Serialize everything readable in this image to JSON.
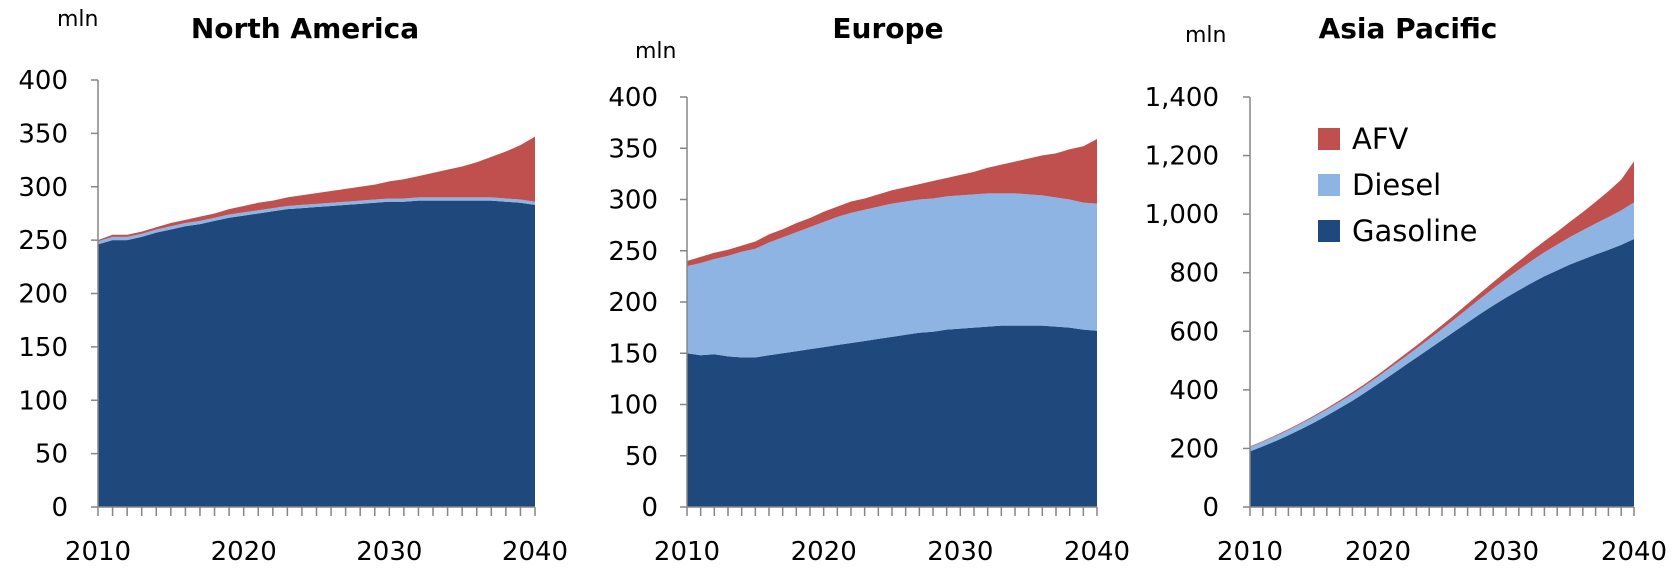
{
  "colors": {
    "gasoline": "#1F497D",
    "diesel": "#8EB4E3",
    "afv": "#C0504D",
    "axis": "#868686"
  },
  "chart_data": [
    {
      "type": "area",
      "stacked": true,
      "title": "North America",
      "ylabel": "mln",
      "xlim": [
        2010,
        2040
      ],
      "ylim": [
        0,
        400
      ],
      "yticks": [
        "0",
        "50",
        "100",
        "150",
        "200",
        "250",
        "300",
        "350",
        "400"
      ],
      "xticks": [
        "2010",
        "2020",
        "2030",
        "2040"
      ],
      "x": [
        2010,
        2011,
        2012,
        2013,
        2014,
        2015,
        2016,
        2017,
        2018,
        2019,
        2020,
        2021,
        2022,
        2023,
        2024,
        2025,
        2026,
        2027,
        2028,
        2029,
        2030,
        2031,
        2032,
        2033,
        2034,
        2035,
        2036,
        2037,
        2038,
        2039,
        2040
      ],
      "series": [
        {
          "name": "Gasoline",
          "values": [
            246,
            250,
            250,
            253,
            257,
            260,
            263,
            265,
            268,
            271,
            273,
            275,
            277,
            279,
            280,
            281,
            282,
            283,
            284,
            285,
            286,
            286,
            287,
            287,
            287,
            287,
            287,
            287,
            286,
            285,
            283
          ]
        },
        {
          "name": "Diesel",
          "values": [
            3,
            3,
            3,
            3,
            3,
            3,
            3,
            3,
            3,
            3,
            3,
            3,
            3,
            3,
            3,
            3,
            3,
            3,
            3,
            3,
            3,
            3,
            3,
            3,
            3,
            3,
            3,
            3,
            3,
            3,
            3
          ]
        },
        {
          "name": "AFV",
          "values": [
            1,
            2,
            2,
            2,
            2,
            3,
            3,
            4,
            4,
            5,
            6,
            7,
            7,
            8,
            9,
            10,
            11,
            12,
            13,
            14,
            16,
            18,
            20,
            23,
            26,
            29,
            33,
            38,
            44,
            51,
            61
          ]
        }
      ]
    },
    {
      "type": "area",
      "stacked": true,
      "title": "Europe",
      "ylabel": "mln",
      "xlim": [
        2010,
        2040
      ],
      "ylim": [
        0,
        400
      ],
      "yticks": [
        "0",
        "50",
        "100",
        "150",
        "200",
        "250",
        "300",
        "350",
        "400"
      ],
      "xticks": [
        "2010",
        "2020",
        "2030",
        "2040"
      ],
      "x": [
        2010,
        2011,
        2012,
        2013,
        2014,
        2015,
        2016,
        2017,
        2018,
        2019,
        2020,
        2021,
        2022,
        2023,
        2024,
        2025,
        2026,
        2027,
        2028,
        2029,
        2030,
        2031,
        2032,
        2033,
        2034,
        2035,
        2036,
        2037,
        2038,
        2039,
        2040
      ],
      "series": [
        {
          "name": "Gasoline",
          "values": [
            150,
            148,
            149,
            147,
            146,
            146,
            148,
            150,
            152,
            154,
            156,
            158,
            160,
            162,
            164,
            166,
            168,
            170,
            171,
            173,
            174,
            175,
            176,
            177,
            177,
            177,
            177,
            176,
            175,
            173,
            172
          ]
        },
        {
          "name": "Diesel",
          "values": [
            85,
            90,
            93,
            98,
            103,
            106,
            110,
            113,
            116,
            119,
            122,
            125,
            127,
            128,
            129,
            130,
            130,
            130,
            130,
            130,
            130,
            130,
            130,
            129,
            129,
            128,
            127,
            126,
            125,
            124,
            124
          ]
        },
        {
          "name": "AFV",
          "values": [
            5,
            6,
            6,
            6,
            6,
            7,
            8,
            8,
            9,
            9,
            10,
            10,
            11,
            11,
            12,
            13,
            14,
            15,
            17,
            18,
            20,
            22,
            25,
            28,
            31,
            35,
            39,
            43,
            49,
            55,
            63
          ]
        }
      ]
    },
    {
      "type": "area",
      "stacked": true,
      "title": "Asia Pacific",
      "ylabel": "mln",
      "xlim": [
        2010,
        2040
      ],
      "ylim": [
        0,
        1400
      ],
      "yticks": [
        "0",
        "200",
        "400",
        "600",
        "800",
        "1,000",
        "1,200",
        "1,400"
      ],
      "xticks": [
        "2010",
        "2020",
        "2030",
        "2040"
      ],
      "legend": {
        "placement": "top-left",
        "entries": [
          "AFV",
          "Diesel",
          "Gasoline"
        ]
      },
      "x": [
        2010,
        2011,
        2012,
        2013,
        2014,
        2015,
        2016,
        2017,
        2018,
        2019,
        2020,
        2021,
        2022,
        2023,
        2024,
        2025,
        2026,
        2027,
        2028,
        2029,
        2030,
        2031,
        2032,
        2033,
        2034,
        2035,
        2036,
        2037,
        2038,
        2039,
        2040
      ],
      "series": [
        {
          "name": "Gasoline",
          "values": [
            190,
            207,
            225,
            245,
            266,
            288,
            312,
            337,
            363,
            391,
            420,
            450,
            480,
            510,
            540,
            570,
            600,
            630,
            660,
            688,
            715,
            740,
            765,
            788,
            808,
            828,
            845,
            862,
            878,
            895,
            915
          ]
        },
        {
          "name": "Diesel",
          "values": [
            15,
            16,
            17,
            18,
            19,
            20,
            21,
            22,
            23,
            24,
            25,
            27,
            29,
            31,
            34,
            38,
            42,
            47,
            52,
            58,
            64,
            70,
            76,
            82,
            88,
            94,
            100,
            106,
            112,
            118,
            125
          ]
        },
        {
          "name": "AFV",
          "values": [
            2,
            2,
            3,
            3,
            3,
            4,
            4,
            5,
            6,
            6,
            7,
            8,
            9,
            10,
            12,
            13,
            15,
            17,
            19,
            22,
            25,
            29,
            33,
            38,
            44,
            52,
            62,
            74,
            88,
            105,
            140
          ]
        }
      ]
    }
  ]
}
